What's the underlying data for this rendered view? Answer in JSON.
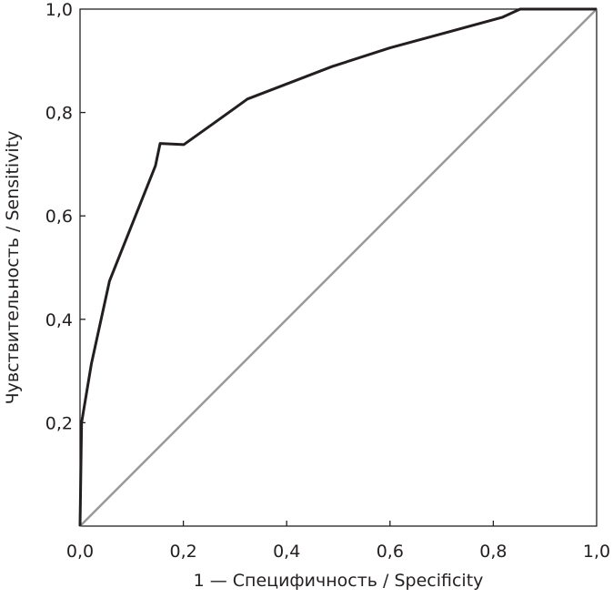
{
  "chart_data": {
    "type": "line",
    "title": "",
    "xlabel": "1 — Специфичность / Specificity",
    "ylabel": "Чувствительность / Sensitivity",
    "xlim": [
      0,
      1
    ],
    "ylim": [
      0,
      1
    ],
    "grid": false,
    "x_ticks": [
      "0,0",
      "0,2",
      "0,4",
      "0,6",
      "0,8",
      "1,0"
    ],
    "y_ticks": [
      "0,2",
      "0,4",
      "0,6",
      "0,8",
      "1,0"
    ],
    "tick_values": [
      0,
      0.2,
      0.4,
      0.6,
      0.8,
      1.0
    ],
    "series": [
      {
        "color": "#231f20",
        "x": [
          0,
          0.003,
          0.022,
          0.057,
          0.146,
          0.155,
          0.201,
          0.26,
          0.324,
          0.488,
          0.6,
          0.817,
          0.852,
          1.0
        ],
        "y": [
          0,
          0.2,
          0.314,
          0.474,
          0.697,
          0.74,
          0.738,
          0.78,
          0.826,
          0.889,
          0.925,
          0.984,
          1.0,
          1.0
        ]
      },
      {
        "color": "#999999",
        "x": [
          0,
          1
        ],
        "y": [
          0,
          1
        ]
      }
    ]
  }
}
